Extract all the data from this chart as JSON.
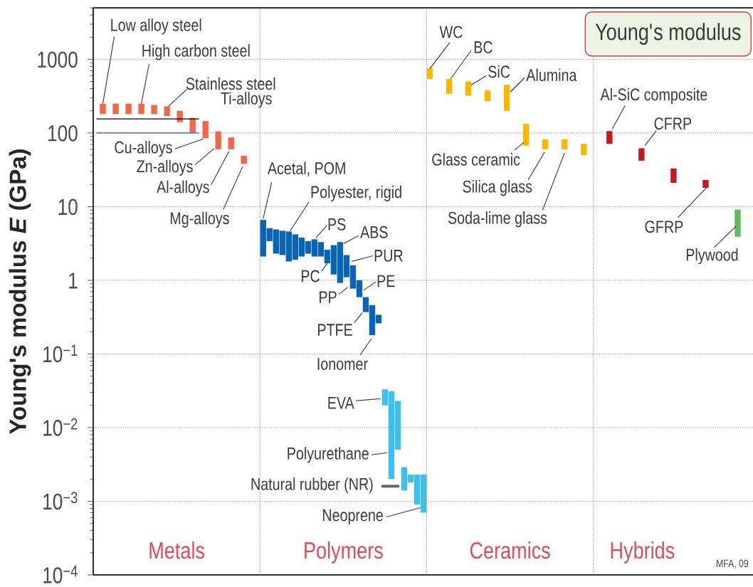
{
  "chart_data": {
    "type": "bar",
    "title": "Young's modulus",
    "ylabel": "Young's modulus *E* (GPa)",
    "categories": [
      null,
      null,
      null,
      null,
      null,
      null,
      null,
      null,
      null,
      null,
      null,
      null,
      null,
      null,
      null,
      null,
      null,
      null,
      null,
      null,
      null,
      null,
      null,
      null,
      null,
      null,
      null,
      null,
      null,
      null,
      null,
      null,
      null,
      null,
      null,
      null,
      null,
      null,
      null,
      null,
      null,
      null,
      null,
      null,
      null,
      null,
      null,
      null,
      null,
      null,
      null,
      null,
      null,
      null,
      null,
      null,
      null,
      null,
      null,
      null,
      null,
      null,
      null,
      null,
      null,
      null,
      null,
      null,
      null,
      null,
      null,
      null,
      null,
      null,
      null,
      null,
      null,
      null,
      null,
      null,
      null,
      null,
      null,
      null,
      null,
      null,
      null,
      null,
      null,
      null,
      null,
      null,
      null,
      null,
      null,
      null,
      null,
      null,
      null,
      null,
      null,
      null,
      null
    ],
    "series": [
      {
        "colors": [
          null,
          "#f26649",
          null,
          "#f26649",
          null,
          "#f26649",
          null,
          "#f26649",
          null,
          "#f26649",
          null,
          "#f26649",
          null,
          "#f26649",
          null,
          "#f26649",
          null,
          "#f26649",
          null,
          "#f26649",
          null,
          "#f26649",
          null,
          "#f26649",
          null,
          null,
          "#0a64b4",
          "#0a64b4",
          "#0a64b4",
          "#0a64b4",
          "#0a64b4",
          "#0a64b4",
          "#0a64b4",
          "#0a64b4",
          "#0a64b4",
          "#0a64b4",
          "#0a64b4",
          "#0a64b4",
          "#0a64b4",
          "#0a64b4",
          "#0a64b4",
          "#0a64b4",
          "#0a64b4",
          "#0a64b4",
          "#0a64b4",
          "#3ec0ee",
          "#3ec0ee",
          "#3ec0ee",
          "#3ec0ee",
          "#3ec0ee",
          "#3ec0ee",
          "#3ec0ee",
          "#fbb700",
          null,
          null,
          "#fbb700",
          null,
          null,
          "#fbb700",
          null,
          null,
          "#fbb700",
          null,
          null,
          "#fbb700",
          null,
          null,
          "#fbb700",
          null,
          null,
          "#fbb700",
          null,
          null,
          "#fbb700",
          null,
          null,
          "#fbb700",
          null,
          null,
          null,
          "#c8171f",
          null,
          null,
          null,
          null,
          "#c8171f",
          null,
          null,
          null,
          null,
          "#c8171f",
          null,
          null,
          null,
          null,
          "#c8171f",
          null,
          null,
          null,
          null,
          "#62ba5f",
          null,
          null
        ],
        "base": [
          null,
          180,
          null,
          180,
          null,
          180,
          null,
          180,
          null,
          180,
          null,
          170,
          null,
          140,
          null,
          100,
          null,
          85,
          null,
          60,
          null,
          60,
          null,
          38,
          null,
          null,
          2.1,
          3.4,
          2.3,
          2.2,
          1.8,
          1.9,
          2.1,
          2.3,
          2.1,
          2.1,
          1.7,
          1.2,
          0.92,
          1.1,
          0.77,
          0.59,
          0.37,
          0.18,
          0.26,
          0.02,
          0.002,
          0.005,
          0.0014,
          0.0018,
          0.0009,
          0.0007,
          540,
          null,
          null,
          340,
          null,
          null,
          320,
          null,
          null,
          270,
          null,
          null,
          200,
          null,
          null,
          67,
          null,
          null,
          60,
          null,
          null,
          60,
          null,
          null,
          50,
          null,
          null,
          null,
          71,
          null,
          null,
          null,
          null,
          42,
          null,
          null,
          null,
          null,
          21,
          null,
          null,
          null,
          null,
          18,
          null,
          null,
          null,
          null,
          3.9,
          null,
          null
        ],
        "values": [
          null,
          70,
          null,
          70,
          null,
          70,
          null,
          70,
          null,
          60,
          null,
          60,
          null,
          60,
          null,
          60,
          null,
          60,
          null,
          45,
          null,
          27,
          null,
          11,
          null,
          null,
          4.5,
          1.7,
          2.6,
          2.5,
          2.8,
          2.3,
          1.7,
          1.1,
          1.5,
          1.2,
          0.9,
          1.8,
          2.38,
          1.1,
          0.83,
          0.41,
          0.22,
          0.28,
          0.08,
          0.013,
          0.029,
          0.018,
          0.0015,
          0.0005,
          0.0014,
          0.0016,
          220,
          null,
          null,
          200,
          null,
          null,
          180,
          null,
          null,
          110,
          null,
          null,
          250,
          null,
          null,
          66,
          null,
          null,
          22,
          null,
          null,
          22,
          null,
          null,
          21,
          null,
          null,
          null,
          35,
          null,
          null,
          null,
          null,
          20,
          null,
          null,
          null,
          null,
          12,
          null,
          null,
          null,
          null,
          5,
          null,
          null,
          null,
          null,
          5.2,
          null,
          null
        ]
      },
      {
        "type": "line",
        "color": "#000000",
        "values": [
          155,
          155,
          155,
          155,
          155,
          155,
          155,
          155,
          155,
          155,
          155,
          155,
          155,
          155,
          155,
          155,
          155,
          null,
          null,
          null,
          null,
          null,
          null,
          null,
          null,
          null,
          null,
          null,
          null,
          null,
          null,
          null,
          null,
          null,
          null,
          null,
          null,
          null,
          null,
          null,
          null,
          null,
          null,
          null,
          null,
          null,
          null,
          null,
          null,
          null,
          null,
          null,
          null,
          null,
          null,
          null,
          null,
          null,
          null,
          null,
          null,
          null,
          null,
          null,
          null,
          null,
          null,
          null,
          null,
          null,
          null,
          null,
          null,
          null,
          null,
          null,
          null,
          null,
          null,
          null,
          null,
          null,
          null,
          null,
          null,
          null,
          null,
          null,
          null,
          null,
          null,
          null,
          null,
          null,
          null,
          null,
          null,
          null,
          null,
          null,
          null,
          null,
          null
        ]
      },
      {
        "type": "line",
        "color": "#3355cc",
        "values": [
          100,
          100,
          100,
          100,
          100,
          100,
          100,
          100,
          100,
          100,
          100,
          100,
          100,
          100,
          100,
          100,
          100,
          null,
          null,
          null,
          null,
          null,
          null,
          null,
          null,
          null,
          null,
          null,
          null,
          null,
          null,
          null,
          null,
          null,
          null,
          null,
          null,
          null,
          null,
          null,
          null,
          null,
          null,
          null,
          null,
          null,
          null,
          null,
          null,
          null,
          null,
          null,
          null,
          null,
          null,
          null,
          null,
          null,
          null,
          null,
          null,
          null,
          null,
          null,
          null,
          null,
          null,
          null,
          null,
          null,
          null,
          null,
          null,
          null,
          null,
          null,
          null,
          null,
          null,
          null,
          null,
          null,
          null,
          null,
          null,
          null,
          null,
          null,
          null,
          null,
          null,
          null,
          null,
          null,
          null,
          null,
          null,
          null,
          null,
          null,
          null,
          null,
          null
        ]
      }
    ],
    "ylim": [
      0.0001,
      5000
    ],
    "yticks": [
      {
        "value": 0.0001,
        "label": "10$^{−4}$"
      },
      {
        "value": 0.001,
        "label": "10$^{−3}$"
      },
      {
        "value": 0.01,
        "label": "10$^{−2}$"
      },
      {
        "value": 0.1,
        "label": "10$^{−1}$"
      },
      1,
      10,
      100,
      1000
    ],
    "log": true,
    "grid": "y",
    "tick_labels": "y",
    "annotations": [
      "Metals",
      "Polymers",
      "Ceramics",
      "Hybrids",
      "Low alloy steel",
      "High carbon steel",
      "Stainless steel",
      "Ti-alloys",
      "Cu-alloys",
      "Zn-alloys",
      "Al-alloys",
      "Mg-alloys",
      "Acetal, POM",
      "Polyester, rigid",
      "PS",
      "PC",
      "ABS",
      "PUR",
      "PP",
      "PE",
      "PTFE",
      "Ionomer",
      "EVA",
      "Polyurethane",
      "Natural rubber (NR)",
      "Neoprene",
      "WC",
      "BC",
      "SiC",
      "Alumina",
      "Glass ceramic",
      "Silica glass",
      "Soda-lime glass",
      "Al-SiC composite",
      "CFRP",
      "GFRP",
      "Plywood",
      "MFA, 09"
    ]
  }
}
